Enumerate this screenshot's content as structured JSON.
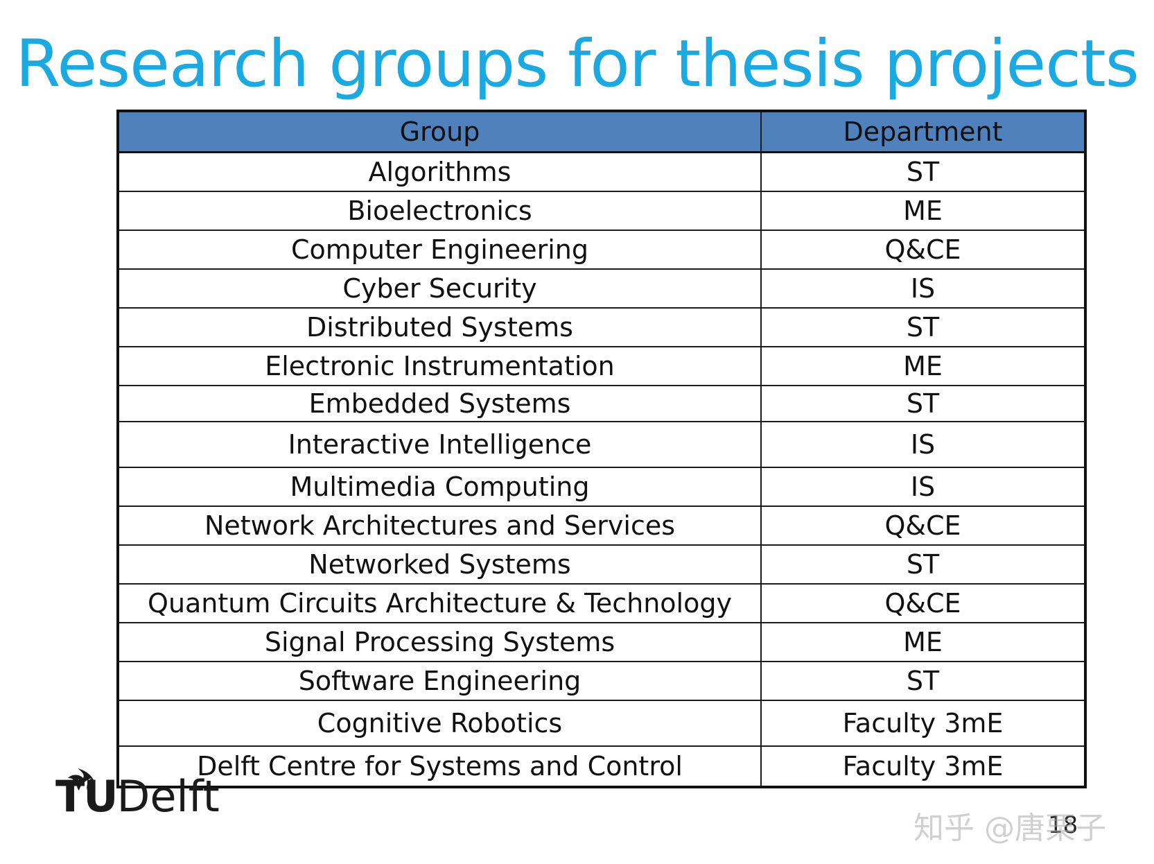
{
  "slide": {
    "title": "Research groups for thesis projects",
    "page_number": "18"
  },
  "table": {
    "headers": [
      "Group",
      "Department"
    ],
    "rows": [
      [
        "Algorithms",
        "ST"
      ],
      [
        "Bioelectronics",
        "ME"
      ],
      [
        "Computer Engineering",
        "Q&CE"
      ],
      [
        "Cyber Security",
        "IS"
      ],
      [
        "Distributed Systems",
        "ST"
      ],
      [
        "Electronic Instrumentation",
        "ME"
      ],
      [
        "Embedded Systems",
        "ST"
      ],
      [
        "Interactive Intelligence",
        "IS"
      ],
      [
        "Multimedia Computing",
        "IS"
      ],
      [
        "Network Architectures and Services",
        "Q&CE"
      ],
      [
        "Networked Systems",
        "ST"
      ],
      [
        "Quantum Circuits Architecture & Technology",
        "Q&CE"
      ],
      [
        "Signal Processing Systems",
        "ME"
      ],
      [
        "Software Engineering",
        "ST"
      ],
      [
        "Cognitive Robotics",
        "Faculty 3mE"
      ],
      [
        "Delft Centre for Systems and Control",
        "Faculty 3mE"
      ]
    ]
  },
  "logo": {
    "brand_tu": "TU",
    "brand_delft": "Delft",
    "icon": "flame-icon"
  },
  "watermark": {
    "text": "知乎 @唐栗子"
  },
  "colors": {
    "title": "#1aa9e1",
    "header_bg": "#4f81bd"
  }
}
